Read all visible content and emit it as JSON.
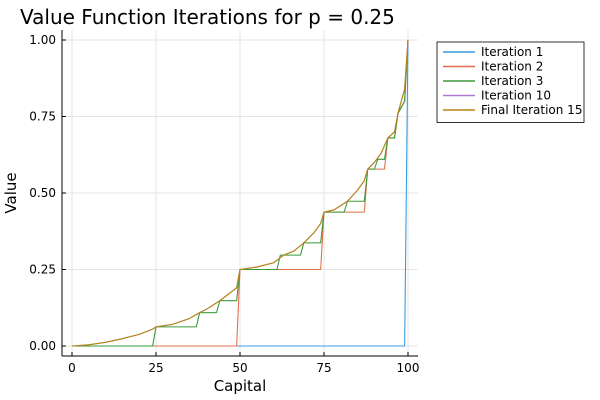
{
  "chart_data": {
    "type": "line",
    "title": "Value Function Iterations for p = 0.25",
    "xlabel": "Capital",
    "ylabel": "Value",
    "xlim": [
      0,
      100
    ],
    "ylim": [
      0,
      1
    ],
    "xticks": [
      0,
      25,
      50,
      75,
      100
    ],
    "yticks": [
      0.0,
      0.25,
      0.5,
      0.75,
      1.0
    ],
    "xtick_labels": [
      "0",
      "25",
      "50",
      "75",
      "100"
    ],
    "ytick_labels": [
      "0.00",
      "0.25",
      "0.50",
      "0.75",
      "1.00"
    ],
    "grid": true,
    "legend_position": "top-right, outside plot area",
    "series": [
      {
        "name": "Iteration 1",
        "color": "#3b9be0",
        "x": [
          0,
          99,
          100
        ],
        "y": [
          0.0,
          0.0,
          1.0
        ]
      },
      {
        "name": "Iteration 2",
        "color": "#e0704a",
        "x": [
          0,
          49,
          50,
          74,
          75,
          87,
          88,
          93,
          94,
          96,
          97,
          99,
          100
        ],
        "y": [
          0.0,
          0.0,
          0.25,
          0.25,
          0.4375,
          0.4375,
          0.578,
          0.578,
          0.68,
          0.68,
          0.76,
          0.8,
          1.0
        ]
      },
      {
        "name": "Iteration 3",
        "color": "#3a9a3a",
        "x": [
          0,
          24,
          25,
          37,
          38,
          43,
          44,
          49,
          50,
          61,
          62,
          68,
          69,
          74,
          75,
          81,
          82,
          87,
          88,
          90,
          91,
          93,
          94,
          96,
          97,
          99,
          100
        ],
        "y": [
          0.0,
          0.0,
          0.0625,
          0.0625,
          0.109,
          0.109,
          0.148,
          0.148,
          0.25,
          0.25,
          0.297,
          0.297,
          0.337,
          0.337,
          0.4375,
          0.4375,
          0.473,
          0.473,
          0.578,
          0.578,
          0.61,
          0.61,
          0.68,
          0.68,
          0.76,
          0.8,
          1.0
        ]
      },
      {
        "name": "Iteration 10",
        "color": "#b07ad0",
        "x": [
          0,
          5,
          10,
          15,
          20,
          24,
          25,
          30,
          35,
          38,
          40,
          44,
          46,
          49,
          50,
          55,
          60,
          63,
          66,
          69,
          72,
          74,
          75,
          78,
          82,
          85,
          87,
          88,
          90,
          92,
          94,
          96,
          97,
          99,
          100
        ],
        "y": [
          0.0,
          0.004,
          0.012,
          0.024,
          0.038,
          0.055,
          0.0625,
          0.071,
          0.09,
          0.109,
          0.12,
          0.148,
          0.165,
          0.19,
          0.25,
          0.258,
          0.272,
          0.297,
          0.31,
          0.337,
          0.37,
          0.4,
          0.4375,
          0.445,
          0.473,
          0.51,
          0.54,
          0.578,
          0.6,
          0.63,
          0.68,
          0.7,
          0.76,
          0.84,
          1.0
        ]
      },
      {
        "name": "Final Iteration 15",
        "color": "#b8860b",
        "x": [
          0,
          5,
          10,
          15,
          20,
          24,
          25,
          30,
          35,
          38,
          40,
          44,
          46,
          49,
          50,
          55,
          60,
          63,
          66,
          69,
          72,
          74,
          75,
          78,
          82,
          85,
          87,
          88,
          90,
          92,
          94,
          96,
          97,
          99,
          100
        ],
        "y": [
          0.0,
          0.004,
          0.012,
          0.024,
          0.038,
          0.055,
          0.0625,
          0.071,
          0.09,
          0.109,
          0.12,
          0.148,
          0.165,
          0.19,
          0.25,
          0.258,
          0.272,
          0.297,
          0.31,
          0.337,
          0.37,
          0.4,
          0.4375,
          0.445,
          0.473,
          0.51,
          0.54,
          0.578,
          0.6,
          0.63,
          0.68,
          0.7,
          0.76,
          0.84,
          1.0
        ]
      }
    ]
  }
}
